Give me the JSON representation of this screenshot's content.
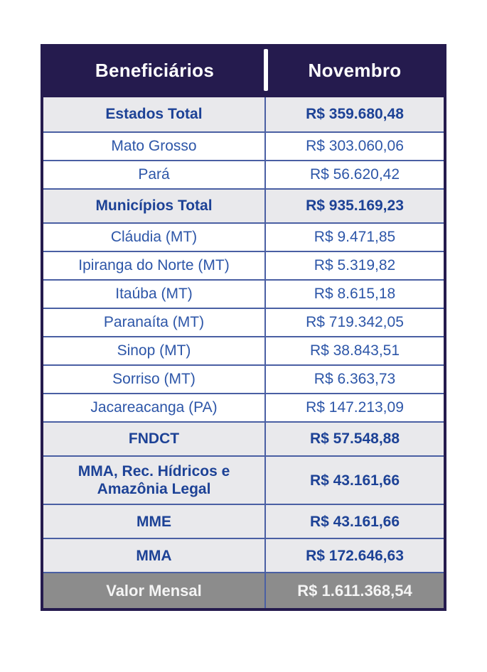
{
  "colors": {
    "header_bg": "#251b4e",
    "grid_line": "#4a5fa3",
    "regular_text": "#2d56a8",
    "bold_text": "#1d4296",
    "alt_row_bg": "#e9e9ec",
    "row_bg": "#ffffff",
    "footer_bg": "#8c8c8c",
    "footer_text": "#f4f4f4"
  },
  "chart_data": {
    "type": "table",
    "title": "",
    "columns": [
      "Beneficiários",
      "Novembro"
    ],
    "currency": "R$",
    "rows": [
      {
        "label": "Estados Total",
        "value": "R$ 359.680,48",
        "emphasis": "subtotal"
      },
      {
        "label": "Mato Grosso",
        "value": "R$ 303.060,06",
        "emphasis": "regular"
      },
      {
        "label": "Pará",
        "value": "R$ 56.620,42",
        "emphasis": "regular"
      },
      {
        "label": "Municípios Total",
        "value": "R$ 935.169,23",
        "emphasis": "subtotal"
      },
      {
        "label": "Cláudia (MT)",
        "value": "R$ 9.471,85",
        "emphasis": "regular"
      },
      {
        "label": "Ipiranga do Norte (MT)",
        "value": "R$ 5.319,82",
        "emphasis": "regular"
      },
      {
        "label": "Itaúba (MT)",
        "value": "R$ 8.615,18",
        "emphasis": "regular"
      },
      {
        "label": "Paranaíta (MT)",
        "value": "R$ 719.342,05",
        "emphasis": "regular"
      },
      {
        "label": "Sinop (MT)",
        "value": "R$ 38.843,51",
        "emphasis": "regular"
      },
      {
        "label": "Sorriso (MT)",
        "value": "R$ 6.363,73",
        "emphasis": "regular"
      },
      {
        "label": "Jacareacanga (PA)",
        "value": "R$ 147.213,09",
        "emphasis": "regular"
      },
      {
        "label": "FNDCT",
        "value": "R$ 57.548,88",
        "emphasis": "subtotal"
      },
      {
        "label": "MMA, Rec. Hídricos e Amazônia Legal",
        "value": "R$ 43.161,66",
        "emphasis": "subtotal"
      },
      {
        "label": "MME",
        "value": "R$ 43.161,66",
        "emphasis": "subtotal"
      },
      {
        "label": "MMA",
        "value": "R$ 172.646,63",
        "emphasis": "subtotal"
      },
      {
        "label": "Valor Mensal",
        "value": "R$ 1.611.368,54",
        "emphasis": "footer"
      }
    ]
  }
}
